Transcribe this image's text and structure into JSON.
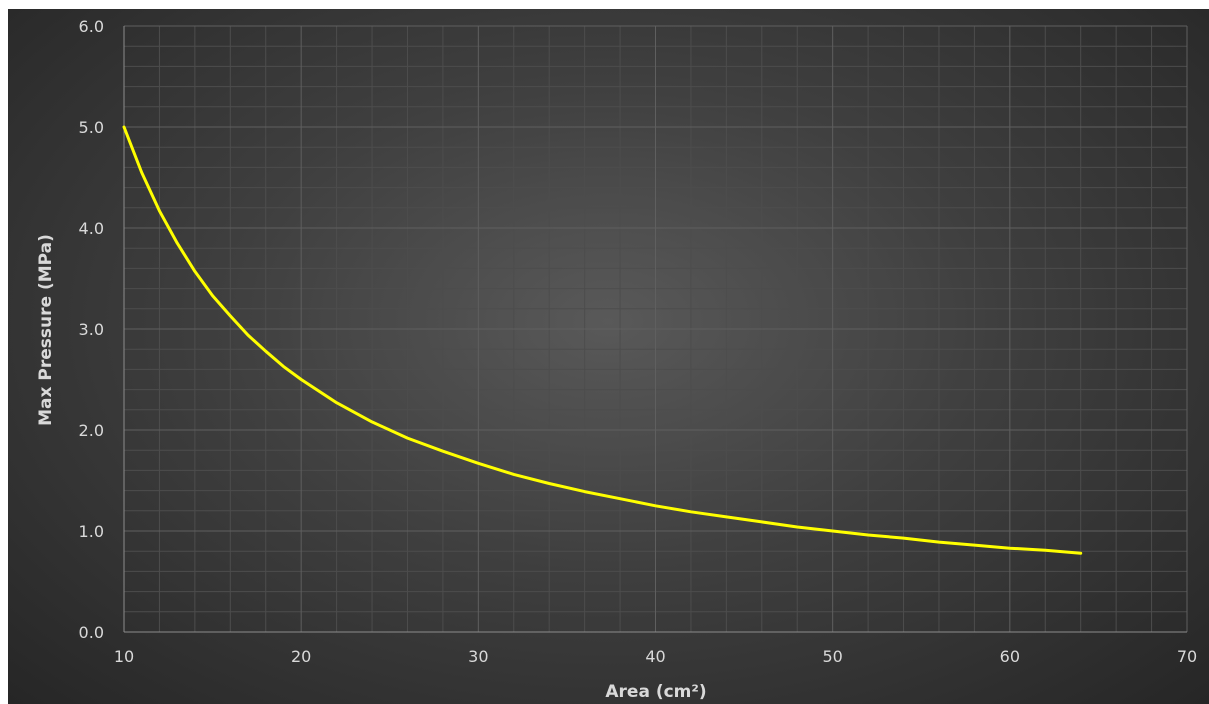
{
  "chart_data": {
    "type": "line",
    "title": "",
    "xlabel": "Area (cm²)",
    "ylabel": "Max Pressure (MPa)",
    "xlim": [
      10,
      70
    ],
    "ylim": [
      0,
      6
    ],
    "x_ticks": [
      "10",
      "20",
      "30",
      "40",
      "50",
      "60",
      "70"
    ],
    "y_ticks": [
      "0.0",
      "1.0",
      "2.0",
      "3.0",
      "4.0",
      "5.0",
      "6.0"
    ],
    "grid": true,
    "legend": "none",
    "series": [
      {
        "color": "#ffff00",
        "x": [
          10,
          11,
          12,
          13,
          14,
          15,
          16,
          17,
          18,
          19,
          20,
          22,
          24,
          26,
          28,
          30,
          32,
          34,
          36,
          38,
          40,
          42,
          44,
          46,
          48,
          50,
          52,
          54,
          56,
          58,
          60,
          62,
          64
        ],
        "y": [
          5.0,
          4.55,
          4.17,
          3.85,
          3.57,
          3.33,
          3.13,
          2.94,
          2.78,
          2.63,
          2.5,
          2.27,
          2.08,
          1.92,
          1.79,
          1.67,
          1.56,
          1.47,
          1.39,
          1.32,
          1.25,
          1.19,
          1.14,
          1.09,
          1.04,
          1.0,
          0.96,
          0.93,
          0.89,
          0.86,
          0.83,
          0.81,
          0.78
        ]
      }
    ]
  },
  "colors": {
    "background_center": "#595959",
    "background_edge": "#262626",
    "gridline": "#5f5f5f",
    "axis_line": "#8c8c8c",
    "text": "#d9d9d9",
    "series": "#ffff00"
  }
}
